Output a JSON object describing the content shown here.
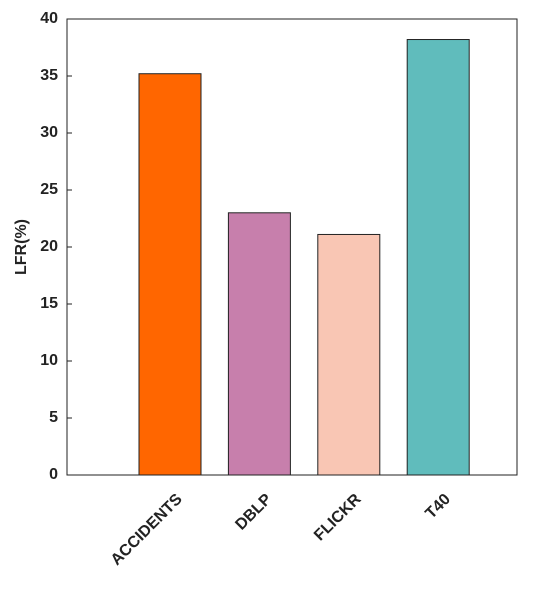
{
  "chart_data": {
    "type": "bar",
    "y_label": "LFR(%)",
    "categories": [
      "ACCIDENTS",
      "DBLP",
      "FLICKR",
      "T40"
    ],
    "values": [
      35.2,
      23.0,
      21.1,
      38.2
    ],
    "colors": [
      "#ff6600",
      "#c77fac",
      "#f9c6b4",
      "#60bcbc"
    ],
    "ylim": [
      0,
      40
    ],
    "yticks": [
      0,
      5,
      10,
      15,
      20,
      25,
      30,
      35,
      40
    ]
  }
}
